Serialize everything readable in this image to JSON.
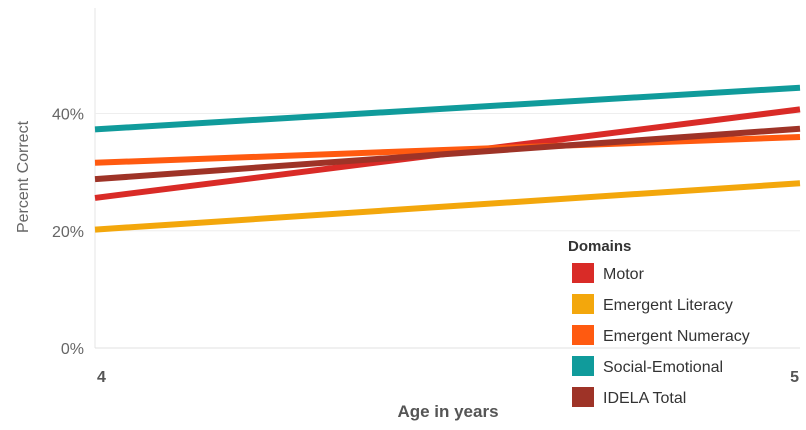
{
  "chart_data": {
    "type": "line",
    "xlabel": "Age in years",
    "ylabel": "Percent Correct",
    "x": [
      4,
      5
    ],
    "x_ticks": [
      "4",
      "5"
    ],
    "y_ticks": [
      0,
      20,
      40
    ],
    "y_tick_labels": [
      "0%",
      "20%",
      "40%"
    ],
    "ylim": [
      0,
      58
    ],
    "grid": true,
    "legend": {
      "title": "Domains",
      "placement": "bottom-right"
    },
    "series": [
      {
        "name": "Motor",
        "color": "#d92b27",
        "values": [
          25.6,
          40.7
        ]
      },
      {
        "name": "Emergent Literacy",
        "color": "#f3a70c",
        "values": [
          20.2,
          28.1
        ]
      },
      {
        "name": "Emergent Numeracy",
        "color": "#ff5a10",
        "values": [
          31.6,
          36.0
        ]
      },
      {
        "name": "Social-Emotional",
        "color": "#109b9b",
        "values": [
          37.3,
          44.4
        ]
      },
      {
        "name": "IDELA Total",
        "color": "#9e3327",
        "values": [
          28.8,
          37.4
        ]
      }
    ]
  }
}
